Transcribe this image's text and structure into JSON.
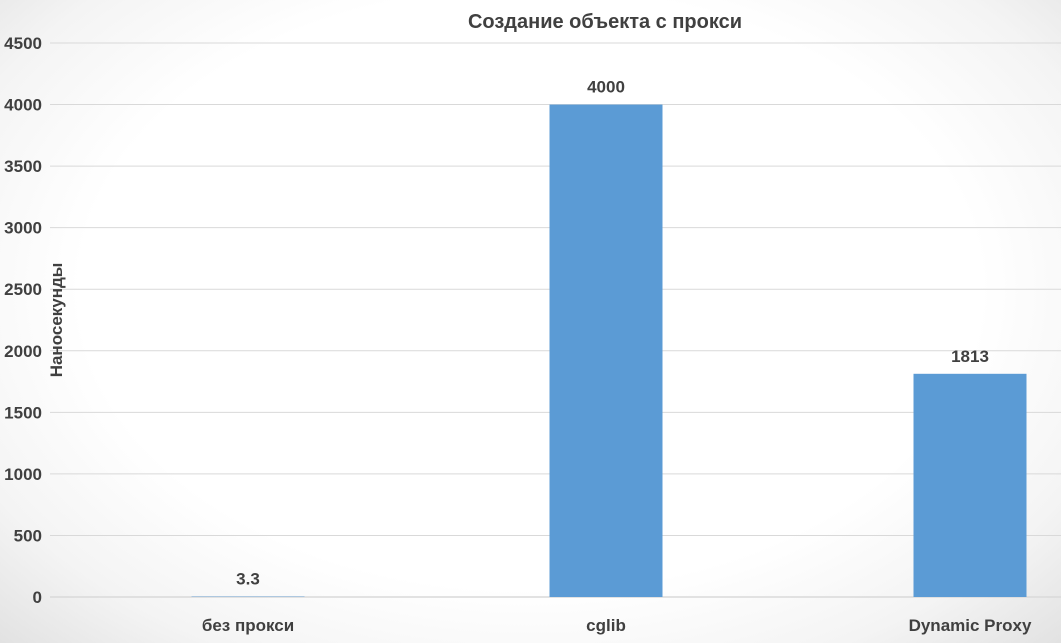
{
  "chart_data": {
    "type": "bar",
    "title": "Создание объекта с прокси",
    "xlabel": "",
    "ylabel": "Наносекунды",
    "categories": [
      "без прокси",
      "cglib",
      "Dynamic Proxy"
    ],
    "values": [
      3.3,
      4000,
      1813
    ],
    "data_labels": [
      "3.3",
      "4000",
      "1813"
    ],
    "ylim": [
      0,
      4500
    ],
    "y_ticks": [
      0,
      500,
      1000,
      1500,
      2000,
      2500,
      3000,
      3500,
      4000,
      4500
    ],
    "grid": true,
    "legend": "none",
    "bar_color": "#5b9bd5"
  }
}
